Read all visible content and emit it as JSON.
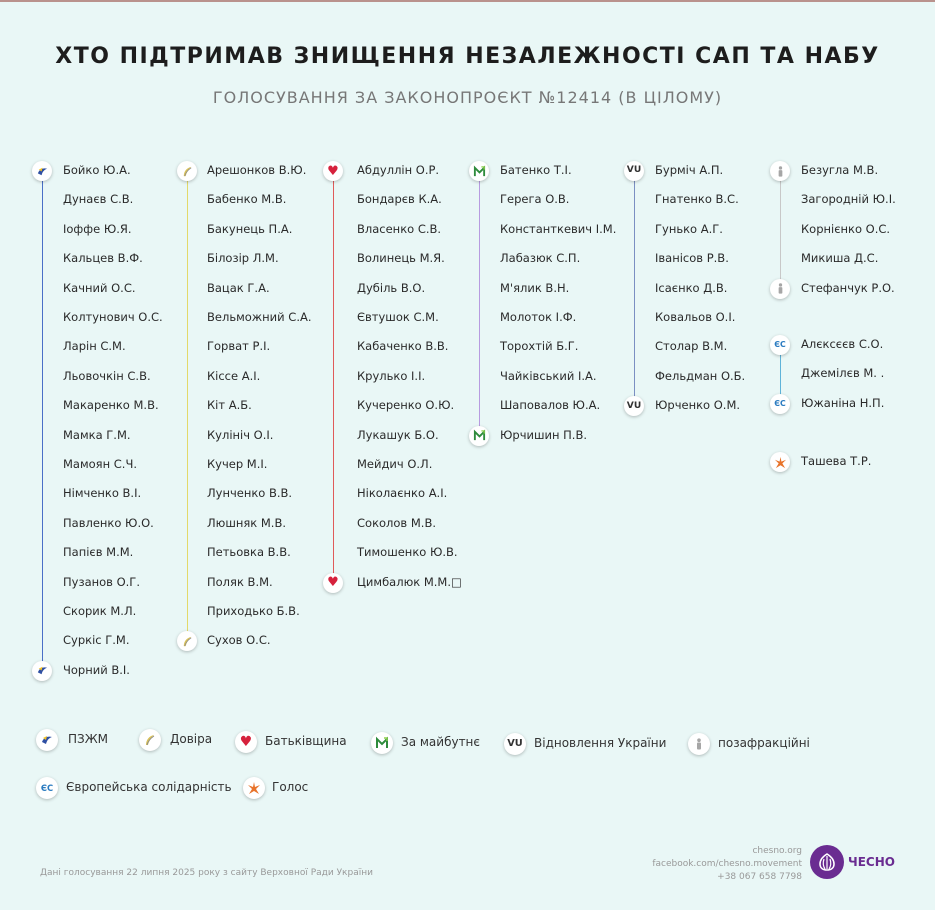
{
  "title": "ХТО ПІДТРИМАВ ЗНИЩЕННЯ НЕЗАЛЕЖНОСТІ САП ТА НАБУ",
  "subtitle": "ГОЛОСУВАННЯ ЗА ЗАКОНОПРОЄКТ №12414 (В ЦІЛОМУ)",
  "columns": {
    "pzzhm": [
      "Бойко Ю.А.",
      "Дунаєв С.В.",
      "Іоффе Ю.Я.",
      "Кальцев В.Ф.",
      "Качний О.С.",
      "Колтунович О.С.",
      "Ларін С.М.",
      "Льовочкін С.В.",
      "Макаренко М.В.",
      "Мамка Г.М.",
      "Мамоян С.Ч.",
      "Німченко В.І.",
      "Павленко Ю.О.",
      "Папієв М.М.",
      "Пузанов О.Г.",
      "Скорик М.Л.",
      "Суркіс Г.М.",
      "Чорний В.І."
    ],
    "dovira": [
      "Арешонков В.Ю.",
      "Бабенко М.В.",
      "Бакунець П.А.",
      "Білозір Л.М.",
      "Вацак Г.А.",
      "Вельможний С.А.",
      "Горват Р.І.",
      "Кіссе А.І.",
      "Кіт А.Б.",
      "Кулініч О.І.",
      "Кучер М.І.",
      "Лунченко В.В.",
      "Люшняк М.В.",
      "Петьовка В.В.",
      "Поляк В.М.",
      "Приходько Б.В.",
      "Сухов О.С."
    ],
    "batkivshchyna": [
      "Абдуллін О.Р.",
      "Бондарєв К.А.",
      "Власенко С.В.",
      "Волинець М.Я.",
      "Дубіль В.О.",
      "Євтушок С.М.",
      "Кабаченко В.В.",
      "Крулько І.І.",
      "Кучеренко О.Ю.",
      "Лукашук Б.О.",
      "Мейдич О.Л.",
      "Ніколаєнко А.І.",
      "Соколов М.В.",
      "Тимошенко Ю.В.",
      "Цимбалюк М.М.□"
    ],
    "za_maibutnie": [
      "Батенко Т.І.",
      "Герега О.В.",
      "Константкевич І.М.",
      "Лабазюк С.П.",
      "М'ялик В.Н.",
      "Молоток І.Ф.",
      "Торохтій Б.Г.",
      "Чайківський І.А.",
      "Шаповалов Ю.А.",
      "Юрчишин П.В."
    ],
    "vidnovlennia": [
      "Бурміч А.П.",
      "Гнатенко В.С.",
      "Гунько А.Г.",
      "Іванісов Р.В.",
      "Ісаєнко Д.В.",
      "Ковальов О.І.",
      "Столар В.М.",
      "Фельдман О.Б.",
      "Юрченко О.М."
    ],
    "pozafraktsiini": [
      "Безугла М.В.",
      "Загородній Ю.І.",
      "Корнієнко О.С.",
      "Микиша Д.С.",
      "Стефанчук Р.О."
    ],
    "yes": [
      "Алєксєєв С.О.",
      "Джемілєв М. .",
      "Южаніна Н.П."
    ],
    "holos": [
      "Ташева Т.Р."
    ]
  },
  "legend": {
    "pzzhm": "ПЗЖМ",
    "dovira": "Довіра",
    "batkivshchyna": "Батьківщина",
    "za_maibutnie": "За майбутнє",
    "vidnovlennia": "Відновлення України",
    "pozafraktsiini": "позафракційні",
    "yes": "Європейська солідарність",
    "holos": "Голос"
  },
  "icons": {
    "pzzhm": "pzzhm-icon",
    "dovira": "dovira-icon",
    "batkivshchyna": "heart-icon",
    "za_maibutnie": "za-maibutnie-icon",
    "vidnovlennia": "vu-icon",
    "pozafraktsiini": "person-icon",
    "yes": "eurosolidarity-icon",
    "holos": "holos-icon"
  },
  "icon_text": {
    "vidnovlennia": "VU",
    "yes": "ЄС",
    "batkivshchyna": "♥"
  },
  "colors": {
    "background": "#e9f7f6",
    "pzzhm_line": "#4a6fc7",
    "dovira_line": "#e3d96a",
    "batkivshchyna_line": "#e05a5a",
    "za_maibutnie_line": "#b79be0",
    "vidnovlennia_line": "#7b8fc2",
    "pozafraktsiini_line": "#c8c8c8",
    "yes_line": "#5fb3d9",
    "heart": "#d6213c",
    "brand": "#6a2c91"
  },
  "footer": {
    "source": "Дані голосування 22 липня 2025 року з сайту Верховної Ради України",
    "site": "chesno.org",
    "facebook": "facebook.com/chesno.movement",
    "phone": "+38 067 658 7798",
    "brand": "ЧЕСНО"
  }
}
